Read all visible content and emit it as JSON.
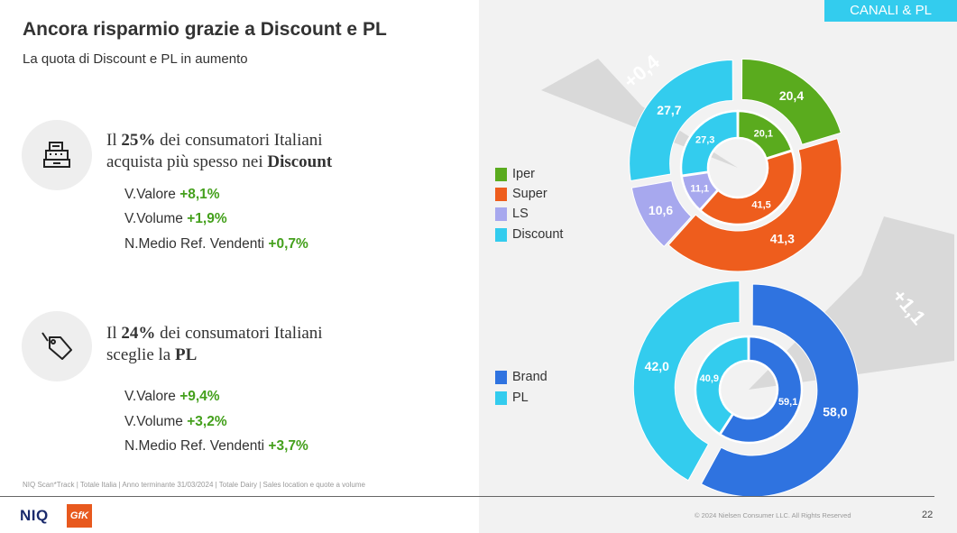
{
  "header": {
    "title": "Ancora risparmio grazie a Discount e PL",
    "subtitle": "La quota di Discount e PL in aumento",
    "tag": "CANALI & PL"
  },
  "blocks": [
    {
      "icon": "cash-register-icon",
      "line1_pre": "Il ",
      "line1_bold": "25%",
      "line1_post": " dei consumatori Italiani",
      "line2_pre": "acquista più spesso nei ",
      "line2_bold": "Discount",
      "metrics": [
        {
          "label": "V.Valore ",
          "value": "+8,1%"
        },
        {
          "label": "V.Volume ",
          "value": "+1,9%"
        },
        {
          "label": "N.Medio Ref. Vendenti ",
          "value": "+0,7%"
        }
      ]
    },
    {
      "icon": "price-tag-icon",
      "line1_pre": "Il ",
      "line1_bold": "24%",
      "line1_post": " dei consumatori Italiani",
      "line2_pre": "sceglie la ",
      "line2_bold": "PL",
      "metrics": [
        {
          "label": "V.Valore ",
          "value": "+9,4%"
        },
        {
          "label": "V.Volume ",
          "value": "+3,2%"
        },
        {
          "label": "N.Medio Ref. Vendenti ",
          "value": "+3,7%"
        }
      ]
    }
  ],
  "footer": {
    "source": "NIQ Scan*Track | Totale Italia | Anno terminante 31/03/2024 | Totale Dairy | Sales location e quote a volume",
    "niq": "NIQ",
    "gfk": "GfK",
    "copyright": "© 2024 Nielsen Consumer LLC. All Rights Reserved",
    "page": "22"
  },
  "colors": {
    "green": "#44a01c",
    "iper": "#5aab1e",
    "super": "#ee5d1d",
    "ls": "#a7a8ee",
    "discount": "#33ccee",
    "brand": "#2f73e0",
    "pl": "#33ccee",
    "highlight_gray": "#d9d9d9"
  },
  "chart_data": [
    {
      "type": "pie",
      "chart": "canali",
      "callout": "+0,4",
      "legend": [
        {
          "name": "Iper",
          "color": "#5aab1e"
        },
        {
          "name": "Super",
          "color": "#ee5d1d"
        },
        {
          "name": "LS",
          "color": "#a7a8ee"
        },
        {
          "name": "Discount",
          "color": "#33ccee"
        }
      ],
      "categories": [
        "Iper",
        "Super",
        "LS",
        "Discount"
      ],
      "series": [
        {
          "ring": "outer",
          "values": [
            20.4,
            41.3,
            10.6,
            27.7
          ],
          "labels": [
            "20,4",
            "41,3",
            "10,6",
            "27,7"
          ]
        },
        {
          "ring": "inner",
          "values": [
            20.1,
            41.5,
            11.1,
            27.3
          ],
          "labels": [
            "20,1",
            "41,5",
            "11,1",
            "27,3"
          ]
        }
      ]
    },
    {
      "type": "pie",
      "chart": "pl",
      "callout": "+1,1",
      "legend": [
        {
          "name": "Brand",
          "color": "#2f73e0"
        },
        {
          "name": "PL",
          "color": "#33ccee"
        }
      ],
      "categories": [
        "Brand",
        "PL"
      ],
      "series": [
        {
          "ring": "outer",
          "values": [
            58.0,
            42.0
          ],
          "labels": [
            "58,0",
            "42,0"
          ]
        },
        {
          "ring": "inner",
          "values": [
            59.1,
            40.9
          ],
          "labels": [
            "59,1",
            "40,9"
          ]
        }
      ]
    }
  ]
}
